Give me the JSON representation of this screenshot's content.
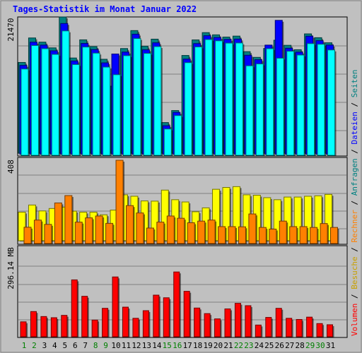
{
  "chart_data": {
    "type": "bar",
    "title": "Tages-Statistik im Monat Januar 2022",
    "categories": [
      "1",
      "2",
      "3",
      "4",
      "5",
      "6",
      "7",
      "8",
      "9",
      "10",
      "11",
      "12",
      "13",
      "14",
      "15",
      "16",
      "17",
      "18",
      "19",
      "20",
      "21",
      "22",
      "23",
      "24",
      "25",
      "26",
      "27",
      "28",
      "29",
      "30",
      "31"
    ],
    "weekend_days": [
      "1",
      "2",
      "8",
      "9",
      "15",
      "16",
      "22",
      "23",
      "29",
      "30"
    ],
    "grid": true,
    "legend_position": "right (vertical)",
    "panels": [
      {
        "ylabel": "21470",
        "ymax": 21470,
        "series": [
          {
            "name": "Anfragen",
            "color": "#008080",
            "values": [
              14300,
              18160,
              17500,
              16600,
              21470,
              15000,
              17860,
              16800,
              14800,
              10560,
              16490,
              19320,
              16860,
              17970,
              4830,
              6720,
              15400,
              17850,
              19000,
              18650,
              18300,
              18450,
              16000,
              15100,
              16500,
              17800,
              17000,
              16300,
              18800,
              18200,
              17400
            ]
          },
          {
            "name": "Dateien",
            "color": "#0000ff",
            "values": [
              14000,
              17660,
              17200,
              16300,
              20600,
              14700,
              17460,
              16500,
              14400,
              15800,
              16100,
              18920,
              16460,
              17560,
              4500,
              6600,
              15000,
              17440,
              18680,
              18400,
              18100,
              18150,
              15600,
              14900,
              17200,
              21100,
              16700,
              16100,
              18600,
              17900,
              17200
            ]
          },
          {
            "name": "Seiten",
            "color": "#00ffff",
            "values": [
              13600,
              17300,
              16800,
              15900,
              19600,
              14300,
              17060,
              16100,
              13900,
              12700,
              15700,
              18400,
              16060,
              17130,
              4150,
              6260,
              14600,
              17080,
              18240,
              18040,
              17680,
              17700,
              14100,
              14400,
              16800,
              15300,
              16400,
              15800,
              17600,
              17500,
              16600
            ]
          }
        ]
      },
      {
        "ylabel": "408",
        "ymax": 408,
        "series": [
          {
            "name": "Besuche",
            "color": "#ffff00",
            "values": [
              140,
              175,
              146,
              158,
              165,
              145,
              140,
              140,
              127,
              150,
              225,
              218,
              195,
              194,
              248,
              201,
              190,
              142,
              161,
              252,
              261,
              265,
              225,
              223,
              211,
              201,
              214,
              214,
              218,
              220,
              227
            ]
          },
          {
            "name": "Rechner",
            "color": "#ff8000",
            "values": [
              80,
              115,
              94,
              199,
              235,
              105,
              126,
              135,
              99,
              408,
              186,
              150,
              76,
              105,
              135,
              124,
              102,
              110,
              115,
              83,
              83,
              82,
              145,
              79,
              71,
              110,
              83,
              83,
              79,
              98,
              79
            ]
          }
        ]
      },
      {
        "ylabel": "296.14 MB",
        "ymax": 296.14,
        "series": [
          {
            "name": "Volumen",
            "color": "#ff0000",
            "values": [
              51,
              86,
              69,
              65,
              73,
              194,
              138,
              57,
              97,
              204,
              101,
              63,
              89,
              142,
              133,
              221,
              155,
              98,
              79,
              61,
              95,
              114,
              106,
              40,
              66,
              97,
              63,
              59,
              67,
              45,
              41
            ]
          }
        ]
      }
    ]
  }
}
